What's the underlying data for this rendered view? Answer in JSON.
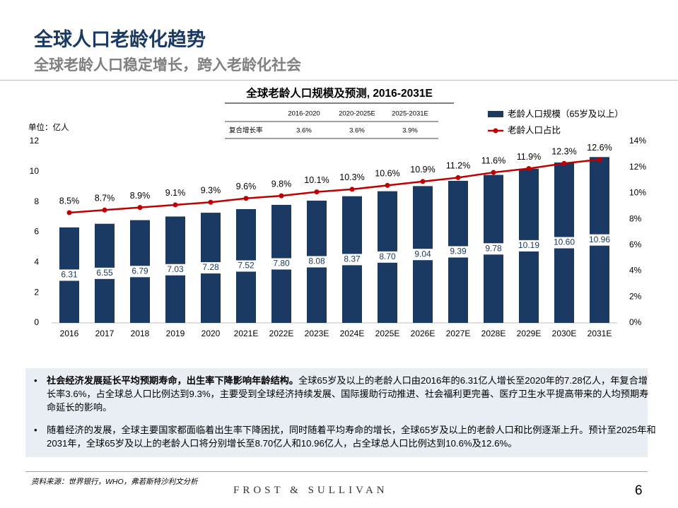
{
  "header": {
    "title": "全球人口老龄化趋势",
    "subtitle": "全球老龄人口稳定增长，跨入老龄化社会"
  },
  "chart_data": {
    "type": "bar-line",
    "title": "全球老龄人口规模及预测, 2016-2031E",
    "y_unit": "单位：亿人",
    "categories": [
      "2016",
      "2017",
      "2018",
      "2019",
      "2020",
      "2021E",
      "2022E",
      "2023E",
      "2024E",
      "2025E",
      "2026E",
      "2027E",
      "2028E",
      "2029E",
      "2030E",
      "2031E"
    ],
    "series": [
      {
        "name": "老龄人口规模（65岁及以上）",
        "type": "bar",
        "color": "#1b3a63",
        "values": [
          6.31,
          6.55,
          6.79,
          7.03,
          7.28,
          7.52,
          7.8,
          8.08,
          8.37,
          8.7,
          9.04,
          9.39,
          9.78,
          10.19,
          10.6,
          10.96
        ],
        "value_labels": [
          "6.31",
          "6.55",
          "6.79",
          "7.03",
          "7.28",
          "7.52",
          "7.80",
          "8.08",
          "8.37",
          "8.70",
          "9.04",
          "9.39",
          "9.78",
          "10.19",
          "10.60",
          "10.96"
        ]
      },
      {
        "name": "老龄人口占比",
        "type": "line",
        "axis": "y2",
        "color": "#c00000",
        "values": [
          8.5,
          8.7,
          8.9,
          9.1,
          9.3,
          9.6,
          9.8,
          10.1,
          10.3,
          10.6,
          10.9,
          11.2,
          11.6,
          11.9,
          12.3,
          12.6
        ],
        "value_labels": [
          "8.5%",
          "8.7%",
          "8.9%",
          "9.1%",
          "9.3%",
          "9.6%",
          "9.8%",
          "10.1%",
          "10.3%",
          "10.6%",
          "10.9%",
          "11.2%",
          "11.6%",
          "11.9%",
          "12.3%",
          "12.6%"
        ]
      }
    ],
    "ylim": [
      0,
      12
    ],
    "yticks": [
      0,
      2,
      4,
      6,
      8,
      10,
      12
    ],
    "y2lim": [
      0,
      14
    ],
    "y2ticks": [
      {
        "value": 0,
        "label": "0%"
      },
      {
        "value": 2,
        "label": "2%"
      },
      {
        "value": 4,
        "label": "4%"
      },
      {
        "value": 6,
        "label": "6%"
      },
      {
        "value": 8,
        "label": "8%"
      },
      {
        "value": 10,
        "label": "10%"
      },
      {
        "value": 12,
        "label": "12%"
      },
      {
        "value": 14,
        "label": "14%"
      }
    ],
    "grid": false,
    "table": {
      "columns": [
        "2016-2020",
        "2020-2025E",
        "2025-2031E"
      ],
      "row_label": "复合增长率",
      "row": [
        "3.6%",
        "3.6%",
        "3.9%"
      ]
    }
  },
  "bullets": [
    {
      "bold": "社会经济发展延长平均预期寿命，出生率下降影响年龄结构。",
      "text": "全球65岁及以上的老龄人口由2016年的6.31亿人增长至2020年的7.28亿人，年复合增长率3.6%，占全球总人口比例达到9.3%，主要受到全球经济持续发展、国际援助行动推进、社会福利更完善、医疗卫生水平提高带来的人均预期寿命延长的影响。"
    },
    {
      "text": "随着经济的发展，全球主要国家都面临着出生率下降困扰，同时随着平均寿命的增长，全球65岁及以上的老龄人口和比例逐渐上升。预计至2025年和2031年，全球65岁及以上的老龄人口将分别增长至8.70亿人和10.96亿人，占全球总人口比例达到10.6%及12.6%。"
    }
  ],
  "footer": {
    "source": "资料来源：世界银行，WHO，弗若斯特沙利文分析",
    "brand": "FROST & SULLIVAN",
    "page": "6"
  }
}
